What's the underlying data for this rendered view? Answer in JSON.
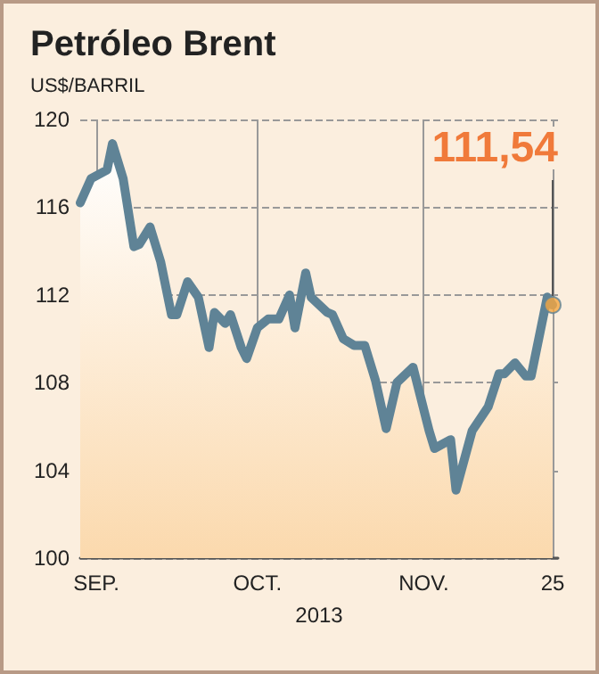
{
  "chart_data": {
    "type": "area",
    "title": "Petróleo Brent",
    "ylabel": "US$/BARRIL",
    "xlabel": "2013",
    "x": [
      "2013-08-29",
      "2013-08-31",
      "2013-09-03",
      "2013-09-04",
      "2013-09-06",
      "2013-09-08",
      "2013-09-09",
      "2013-09-11",
      "2013-09-13",
      "2013-09-15",
      "2013-09-16",
      "2013-09-18",
      "2013-09-20",
      "2013-09-22",
      "2013-09-23",
      "2013-09-25",
      "2013-09-26",
      "2013-09-28",
      "2013-09-29",
      "2013-10-01",
      "2013-10-03",
      "2013-10-05",
      "2013-10-07",
      "2013-10-08",
      "2013-10-10",
      "2013-10-11",
      "2013-10-14",
      "2013-10-15",
      "2013-10-17",
      "2013-10-19",
      "2013-10-21",
      "2013-10-23",
      "2013-10-25",
      "2013-10-27",
      "2013-10-30",
      "2013-11-02",
      "2013-11-03",
      "2013-11-06",
      "2013-11-07",
      "2013-11-10",
      "2013-11-13",
      "2013-11-15",
      "2013-11-16",
      "2013-11-18",
      "2013-11-20",
      "2013-11-21",
      "2013-11-24",
      "2013-11-25"
    ],
    "series": [
      {
        "color": "#5f8396",
        "values": [
          116.2,
          117.3,
          117.7,
          118.9,
          117.3,
          114.2,
          114.3,
          115.1,
          113.5,
          111.1,
          111.1,
          112.6,
          111.9,
          109.6,
          111.2,
          110.7,
          111.1,
          109.6,
          109.1,
          110.5,
          110.9,
          110.9,
          112.0,
          110.5,
          113.0,
          111.9,
          111.2,
          111.1,
          110.0,
          109.7,
          109.7,
          108.1,
          105.9,
          108.0,
          108.7,
          105.8,
          105.0,
          105.4,
          103.1,
          105.8,
          106.9,
          108.4,
          108.4,
          108.9,
          108.3,
          108.3,
          111.9,
          111.54
        ]
      },
      {
        "type": "scatter",
        "color": "#f5a640",
        "marker": "circle",
        "x": [
          "2013-11-25"
        ],
        "values": [
          111.54
        ]
      }
    ],
    "xlim": [
      "2013-08-29",
      "2013-11-26"
    ],
    "xticks": [
      {
        "value": "2013-09-01",
        "label": "SEP."
      },
      {
        "value": "2013-10-01",
        "label": "OCT."
      },
      {
        "value": "2013-11-01",
        "label": "NOV."
      },
      {
        "value": "2013-11-25",
        "label": "25"
      }
    ],
    "ylim": [
      100,
      120
    ],
    "yticks": [
      100,
      104,
      108,
      112,
      116,
      120
    ],
    "grid": true,
    "marker": "none",
    "line_style": "solid",
    "annotations": [
      {
        "text": "111,54",
        "x": "2013-11-25",
        "y": 111.54
      }
    ]
  }
}
